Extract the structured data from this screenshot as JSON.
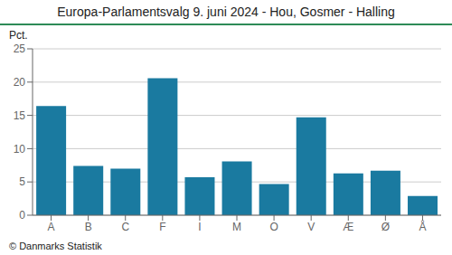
{
  "chart_data": {
    "type": "bar",
    "title": "Europa-Parlamentsvalg 9. juni 2024 - Hou, Gosmer - Halling",
    "ylabel": "Pct.",
    "footer": "© Danmarks Statistik",
    "categories": [
      "A",
      "B",
      "C",
      "F",
      "I",
      "M",
      "O",
      "V",
      "Æ",
      "Ø",
      "Å"
    ],
    "values": [
      16.4,
      7.4,
      7.0,
      20.6,
      5.7,
      8.1,
      4.7,
      14.7,
      6.3,
      6.7,
      2.9
    ],
    "color": "#1a7aa0",
    "ylim": [
      0,
      25
    ],
    "yticks": [
      0,
      5,
      10,
      15,
      20,
      25
    ],
    "grid": true
  }
}
